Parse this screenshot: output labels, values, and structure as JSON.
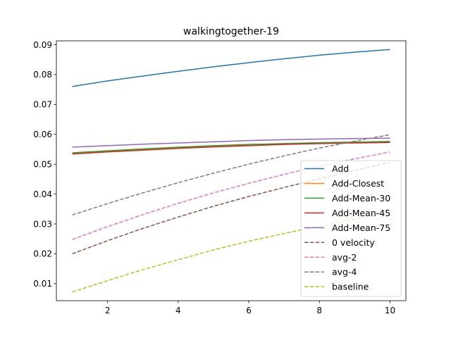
{
  "chart_data": {
    "type": "line",
    "title": "walkingtogether-19",
    "xlabel": "",
    "ylabel": "",
    "xlim": [
      0.55,
      10.45
    ],
    "ylim": [
      0.0043,
      0.0913
    ],
    "xticks": [
      2,
      4,
      6,
      8,
      10
    ],
    "yticks": [
      0.01,
      0.02,
      0.03,
      0.04,
      0.05,
      0.06,
      0.07,
      0.08,
      0.09
    ],
    "grid": false,
    "legend_position": "lower-right",
    "x": [
      1,
      2,
      3,
      4,
      5,
      6,
      7,
      8,
      9,
      10
    ],
    "series": [
      {
        "name": "Add",
        "color": "#1f77b4",
        "dash": "solid",
        "values": [
          0.076,
          0.0779,
          0.0795,
          0.0811,
          0.0826,
          0.084,
          0.0853,
          0.0865,
          0.0875,
          0.0884
        ]
      },
      {
        "name": "Add-Closest",
        "color": "#ff7f0e",
        "dash": "solid",
        "values": [
          0.0536,
          0.0543,
          0.0549,
          0.0555,
          0.056,
          0.0564,
          0.0568,
          0.0571,
          0.0573,
          0.0575
        ]
      },
      {
        "name": "Add-Mean-30",
        "color": "#2ca02c",
        "dash": "solid",
        "values": [
          0.0538,
          0.0545,
          0.0551,
          0.0557,
          0.0562,
          0.0566,
          0.0569,
          0.0572,
          0.0574,
          0.0576
        ]
      },
      {
        "name": "Add-Mean-45",
        "color": "#d62728",
        "dash": "solid",
        "values": [
          0.0534,
          0.0541,
          0.0547,
          0.0553,
          0.0558,
          0.0562,
          0.0566,
          0.0569,
          0.0571,
          0.0573
        ]
      },
      {
        "name": "Add-Mean-75",
        "color": "#9467bd",
        "dash": "solid",
        "values": [
          0.0557,
          0.0562,
          0.0567,
          0.0571,
          0.0575,
          0.0579,
          0.0582,
          0.0584,
          0.0586,
          0.0587
        ]
      },
      {
        "name": "0 velocity",
        "color": "#8c564b",
        "dash": "dashed",
        "values": [
          0.02,
          0.0244,
          0.0285,
          0.0323,
          0.0359,
          0.0392,
          0.0422,
          0.0451,
          0.0479,
          0.0506
        ]
      },
      {
        "name": "avg-2",
        "color": "#e377c2",
        "dash": "dashed",
        "values": [
          0.0248,
          0.0291,
          0.0331,
          0.0369,
          0.0404,
          0.0436,
          0.0466,
          0.0493,
          0.0518,
          0.0541
        ]
      },
      {
        "name": "avg-4",
        "color": "#7f7f7f",
        "dash": "dashed",
        "values": [
          0.033,
          0.0368,
          0.0404,
          0.0438,
          0.047,
          0.05,
          0.0528,
          0.0554,
          0.0577,
          0.0599
        ]
      },
      {
        "name": "baseline",
        "color": "#bcbd22",
        "dash": "dashed",
        "values": [
          0.0072,
          0.011,
          0.0147,
          0.018,
          0.0213,
          0.0242,
          0.0268,
          0.0293,
          0.0316,
          0.0339
        ]
      }
    ]
  }
}
